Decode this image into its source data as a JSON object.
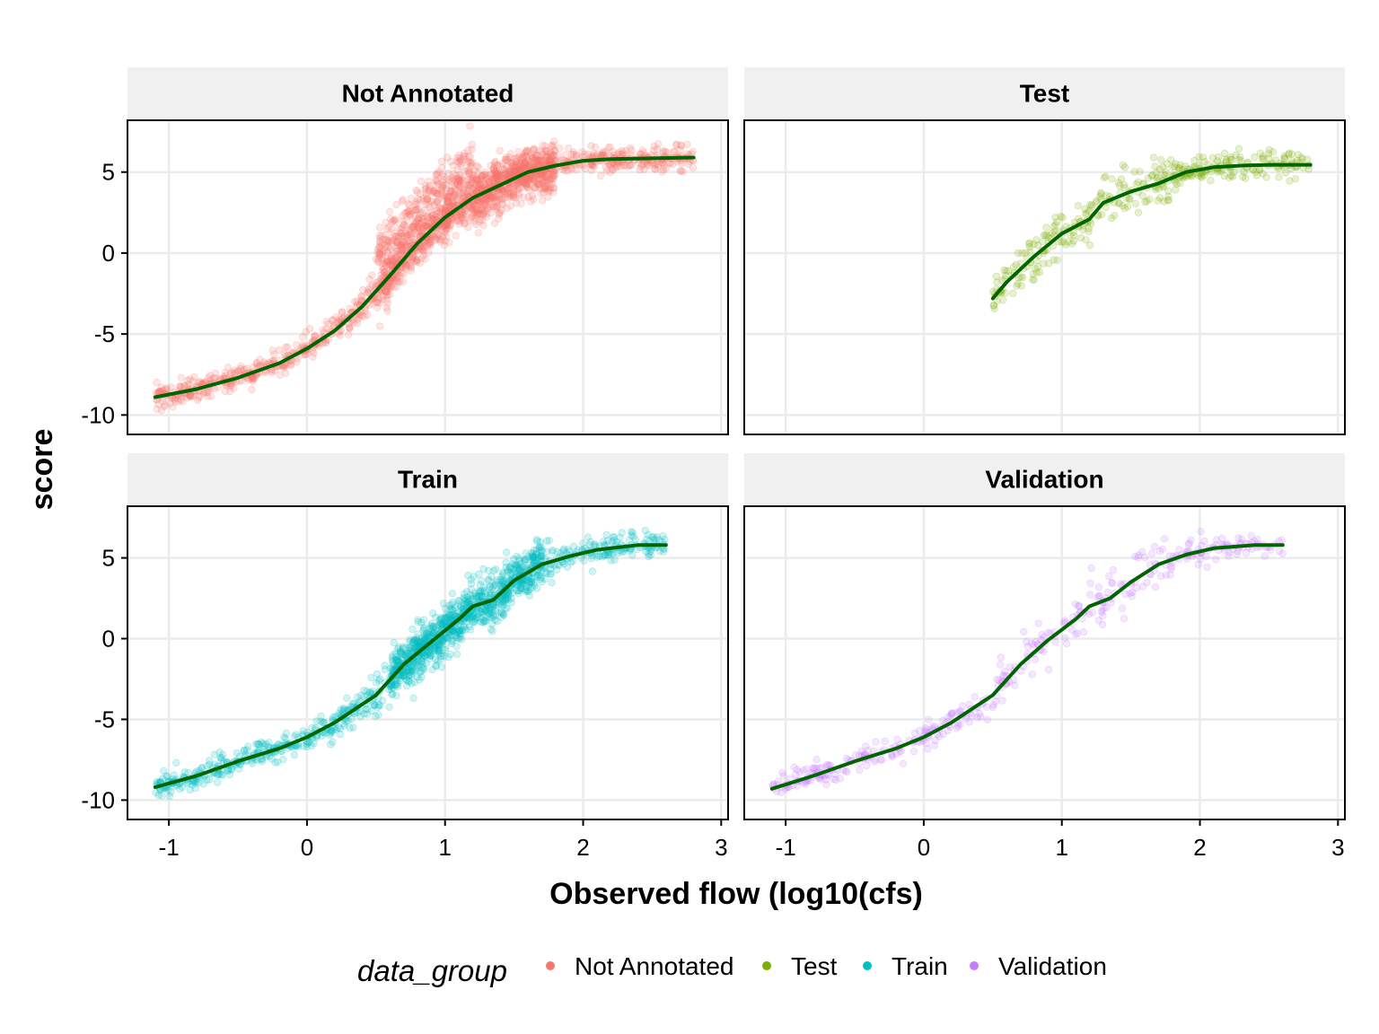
{
  "chart_data": {
    "type": "scatter",
    "facet_by": "data_group",
    "xlabel": "Observed flow (log10(cfs)",
    "ylabel": "score",
    "xlim": [
      -1.3,
      3.05
    ],
    "ylim": [
      -11.2,
      8.2
    ],
    "x_ticks": [
      -1,
      0,
      1,
      2,
      3
    ],
    "x_tick_labels": [
      "-1",
      "0",
      "1",
      "2",
      "3"
    ],
    "y_ticks": [
      -10,
      -5,
      0,
      5
    ],
    "y_tick_labels": [
      "-10",
      "-5",
      "0",
      "5"
    ],
    "grid": true,
    "legend": {
      "title": "data_group",
      "position": "bottom",
      "entries": [
        {
          "label": "Not Annotated",
          "color": "#F8766D"
        },
        {
          "label": "Test",
          "color": "#7CAE00"
        },
        {
          "label": "Train",
          "color": "#00BFC4"
        },
        {
          "label": "Validation",
          "color": "#C77CFF"
        }
      ]
    },
    "trend_color": "#006400",
    "panels": [
      {
        "title": "Not Annotated",
        "color": "#F8766D",
        "x_range": [
          -1.1,
          2.8
        ],
        "trend": {
          "x": [
            -1.1,
            -0.8,
            -0.5,
            -0.2,
            0.0,
            0.2,
            0.4,
            0.6,
            0.8,
            1.0,
            1.2,
            1.4,
            1.6,
            1.8,
            2.0,
            2.2,
            2.5,
            2.8
          ],
          "y": [
            -8.9,
            -8.4,
            -7.7,
            -6.8,
            -5.9,
            -4.8,
            -3.3,
            -1.4,
            0.6,
            2.2,
            3.4,
            4.2,
            5.0,
            5.4,
            5.7,
            5.8,
            5.85,
            5.9
          ]
        }
      },
      {
        "title": "Test",
        "color": "#7CAE00",
        "x_range": [
          0.5,
          2.8
        ],
        "trend": {
          "x": [
            0.5,
            0.6,
            0.8,
            1.0,
            1.2,
            1.3,
            1.5,
            1.7,
            1.9,
            2.1,
            2.3,
            2.5,
            2.8
          ],
          "y": [
            -2.8,
            -1.8,
            -0.2,
            1.2,
            2.1,
            3.1,
            3.8,
            4.3,
            5.0,
            5.3,
            5.4,
            5.45,
            5.45
          ]
        }
      },
      {
        "title": "Train",
        "color": "#00BFC4",
        "x_range": [
          -1.1,
          2.6
        ],
        "trend": {
          "x": [
            -1.1,
            -0.8,
            -0.5,
            -0.2,
            0.0,
            0.2,
            0.5,
            0.7,
            0.9,
            1.1,
            1.2,
            1.35,
            1.5,
            1.7,
            1.9,
            2.1,
            2.4,
            2.6
          ],
          "y": [
            -9.2,
            -8.5,
            -7.6,
            -6.8,
            -6.1,
            -5.2,
            -3.5,
            -1.6,
            -0.2,
            1.2,
            2.0,
            2.4,
            3.6,
            4.6,
            5.1,
            5.5,
            5.8,
            5.8
          ]
        }
      },
      {
        "title": "Validation",
        "color": "#C77CFF",
        "x_range": [
          -1.1,
          2.6
        ],
        "trend": {
          "x": [
            -1.1,
            -0.8,
            -0.5,
            -0.2,
            0.0,
            0.2,
            0.5,
            0.7,
            0.9,
            1.1,
            1.2,
            1.35,
            1.5,
            1.7,
            1.9,
            2.1,
            2.4,
            2.6
          ],
          "y": [
            -9.3,
            -8.5,
            -7.6,
            -6.8,
            -6.1,
            -5.2,
            -3.5,
            -1.6,
            -0.1,
            1.2,
            2.0,
            2.5,
            3.5,
            4.6,
            5.2,
            5.6,
            5.8,
            5.8
          ]
        }
      }
    ]
  }
}
